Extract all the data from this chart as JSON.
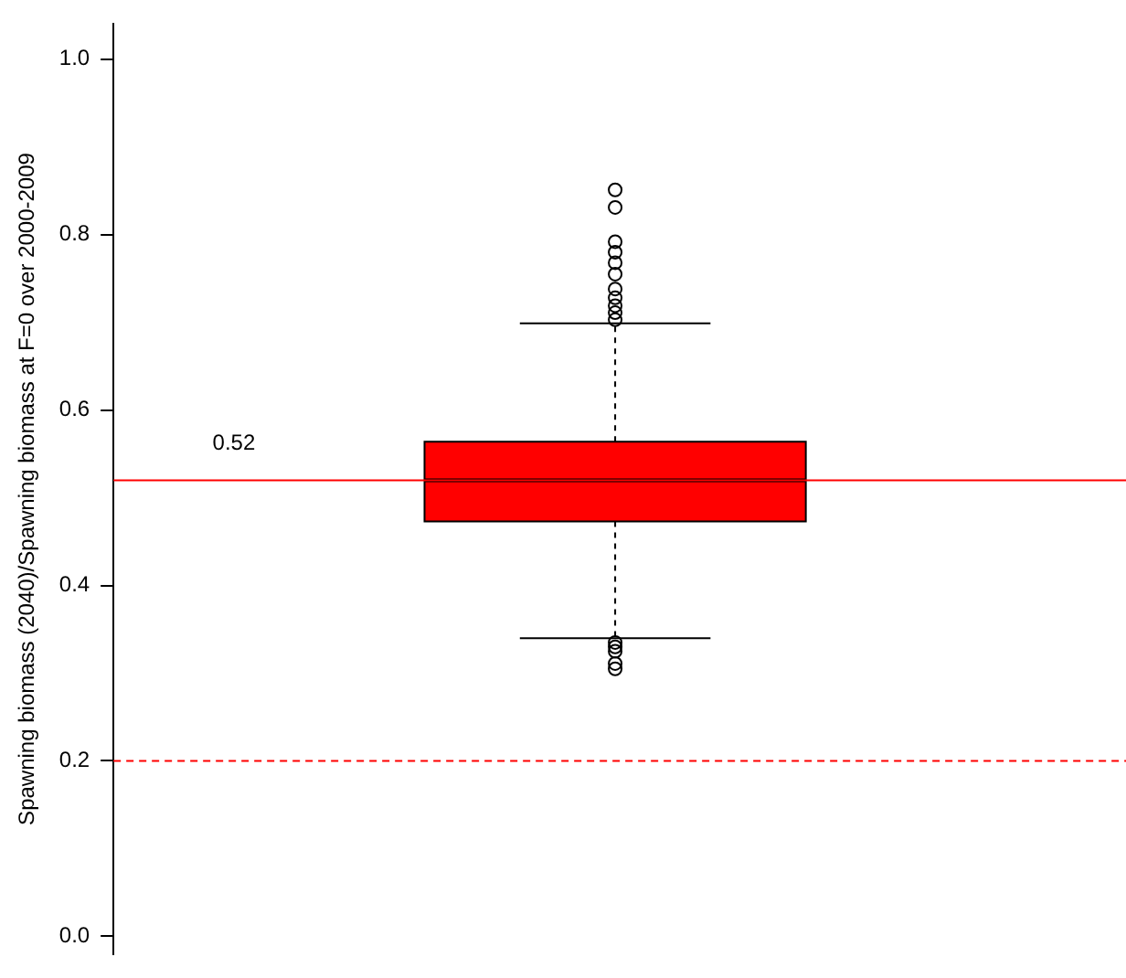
{
  "chart_data": {
    "type": "box",
    "ylabel": "Spawning biomass (2040)/Spawning biomass at F=0 over 2000-2009",
    "categories": [
      null
    ],
    "boxes": [
      {
        "low": 0.34,
        "q1": 0.473,
        "median": 0.52,
        "q3": 0.564,
        "high": 0.699,
        "outliers": [
          0.851,
          0.831,
          0.792,
          0.78,
          0.768,
          0.755,
          0.738,
          0.728,
          0.719,
          0.711,
          0.703,
          0.335,
          0.33,
          0.325,
          0.311,
          0.305
        ]
      }
    ],
    "color": "#ff0000",
    "ylim": [
      -0.02,
      1.04
    ],
    "yticks": [
      {
        "value": 0,
        "label": "0.0"
      },
      {
        "value": 0.2,
        "label": "0.2"
      },
      {
        "value": 0.4,
        "label": "0.4"
      },
      {
        "value": 0.6,
        "label": "0.6"
      },
      {
        "value": 0.8,
        "label": "0.8"
      },
      {
        "value": 1,
        "label": "1.0"
      }
    ],
    "ref_lines": [
      {
        "axis": "y",
        "value": 0.52,
        "label": "0.52",
        "color": "#ff0000"
      },
      {
        "axis": "y",
        "value": 0.2,
        "color": "#ff0000",
        "line_style": "dashed"
      }
    ],
    "tick_labels": "y"
  }
}
